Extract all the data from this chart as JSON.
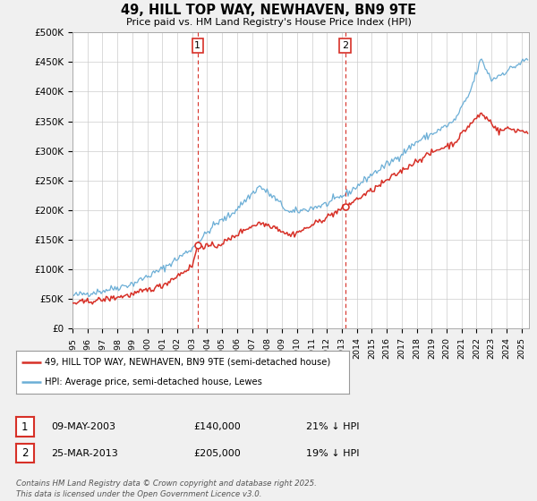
{
  "title": "49, HILL TOP WAY, NEWHAVEN, BN9 9TE",
  "subtitle": "Price paid vs. HM Land Registry's House Price Index (HPI)",
  "ylim": [
    0,
    500000
  ],
  "yticks": [
    0,
    50000,
    100000,
    150000,
    200000,
    250000,
    300000,
    350000,
    400000,
    450000,
    500000
  ],
  "ytick_labels": [
    "£0",
    "£50K",
    "£100K",
    "£150K",
    "£200K",
    "£250K",
    "£300K",
    "£350K",
    "£400K",
    "£450K",
    "£500K"
  ],
  "xlim_start": 1995.0,
  "xlim_end": 2025.5,
  "hpi_color": "#6baed6",
  "sale_color": "#d73027",
  "marker1_x": 2003.36,
  "marker1_y": 140000,
  "marker2_x": 2013.23,
  "marker2_y": 205000,
  "legend_sale_label": "49, HILL TOP WAY, NEWHAVEN, BN9 9TE (semi-detached house)",
  "legend_hpi_label": "HPI: Average price, semi-detached house, Lewes",
  "note1_date": "09-MAY-2003",
  "note1_price": "£140,000",
  "note1_hpi": "21% ↓ HPI",
  "note2_date": "25-MAR-2013",
  "note2_price": "£205,000",
  "note2_hpi": "19% ↓ HPI",
  "footer": "Contains HM Land Registry data © Crown copyright and database right 2025.\nThis data is licensed under the Open Government Licence v3.0.",
  "background_color": "#f0f0f0",
  "plot_bg_color": "#ffffff",
  "grid_color": "#cccccc"
}
